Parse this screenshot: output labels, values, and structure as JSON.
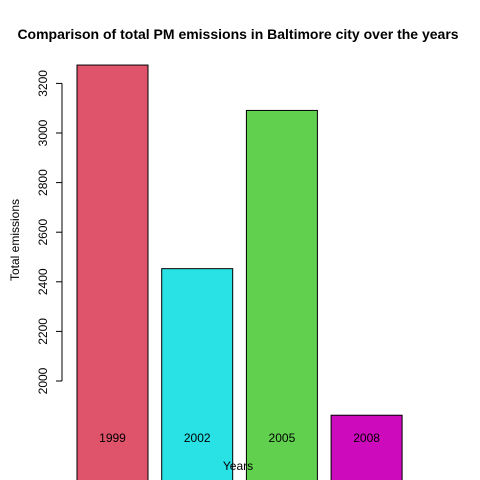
{
  "chart_data": {
    "type": "bar",
    "title": "Comparison of total PM emissions in Baltimore city over the years",
    "xlabel": "Years",
    "ylabel": "Total emissions",
    "categories": [
      "1999",
      "2002",
      "2005",
      "2008"
    ],
    "values": [
      3274,
      2453,
      3091,
      1862
    ],
    "colors": [
      "#DF536B",
      "#28E2E5",
      "#61D04F",
      "#CD0BBC"
    ],
    "yticks": [
      2000,
      2200,
      2400,
      2600,
      2800,
      3000,
      3200
    ],
    "ylim": [
      1680,
      3300
    ],
    "grid": false,
    "legend": "none"
  }
}
